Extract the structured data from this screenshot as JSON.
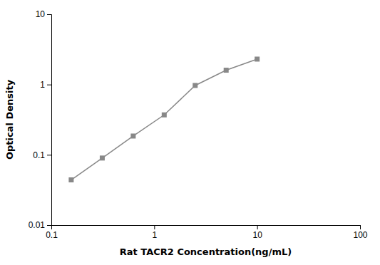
{
  "chart_data": {
    "type": "line",
    "x": [
      0.156,
      0.3125,
      0.625,
      1.25,
      2.5,
      5.0,
      10.0
    ],
    "series": [
      {
        "color": "#888888",
        "marker": "square",
        "values": [
          0.044,
          0.09,
          0.185,
          0.37,
          0.97,
          1.6,
          2.3
        ]
      }
    ],
    "xlabel": "Rat TACR2 Concentration(ng/mL)",
    "ylabel": "Optical Density",
    "xlim": [
      0.1,
      100
    ],
    "ylim": [
      0.01,
      10
    ],
    "xticks": [
      0.1,
      1,
      10,
      100
    ],
    "yticks": [
      0.01,
      0.1,
      1,
      10
    ],
    "log": true,
    "grid": false
  }
}
